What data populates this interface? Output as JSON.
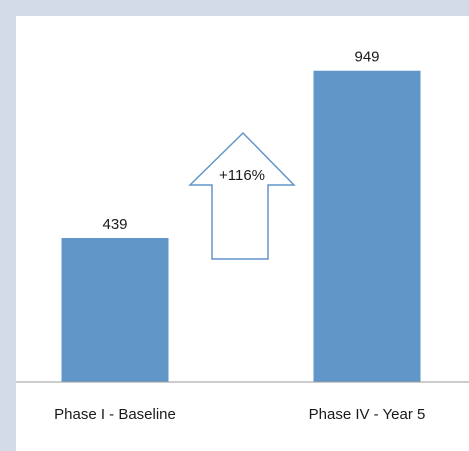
{
  "chart_data": {
    "type": "bar",
    "categories": [
      "Phase I - Baseline",
      "Phase IV - Year 5"
    ],
    "values": [
      439,
      949
    ],
    "data_labels": [
      "439",
      "949"
    ],
    "ylim": [
      0,
      1000
    ],
    "grid": false,
    "legend": "none",
    "annotation": {
      "text": "+116%",
      "shape": "up-arrow",
      "between": [
        "Phase I - Baseline",
        "Phase IV - Year 5"
      ]
    },
    "colors": {
      "bar": "#6096c8",
      "baseline": "#9a9a9a",
      "arrow_stroke": "#6096c8",
      "arrow_fill": "#ffffff",
      "frame": "#d3dbe7"
    }
  }
}
